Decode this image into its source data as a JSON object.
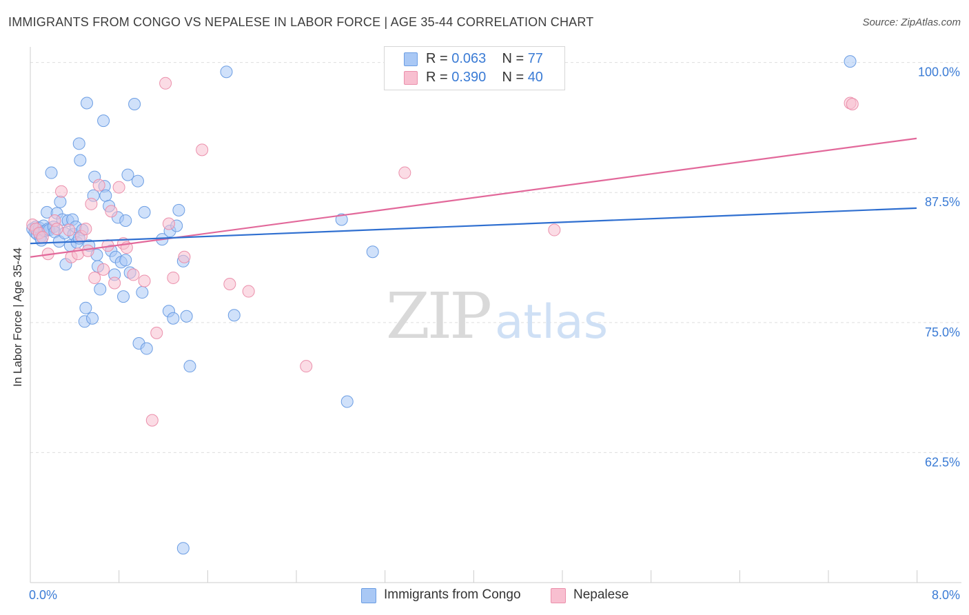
{
  "header": {
    "title": "IMMIGRANTS FROM CONGO VS NEPALESE IN LABOR FORCE | AGE 35-44 CORRELATION CHART",
    "source": "Source: ZipAtlas.com"
  },
  "watermark": {
    "zip": "ZIP",
    "atlas": "atlas"
  },
  "legend_top": {
    "rows": [
      {
        "r_label": "R = ",
        "r_value": "0.063",
        "n_label": "N = ",
        "n_value": "77"
      },
      {
        "r_label": "R = ",
        "r_value": "0.390",
        "n_label": "N = ",
        "n_value": "40"
      }
    ]
  },
  "legend_bottom": {
    "items": [
      "Immigrants from Congo",
      "Nepalese"
    ]
  },
  "colors": {
    "congo_fill": "#a9c8f5",
    "congo_stroke": "#6b9de3",
    "congo_line": "#2f6fd0",
    "nepal_fill": "#f8bfd0",
    "nepal_stroke": "#eb8fab",
    "nepal_line": "#e2689a",
    "tick_label": "#3a7bd5",
    "grid": "#dddddd",
    "axis": "#cccccc"
  },
  "chart_data": {
    "type": "scatter",
    "title": "IMMIGRANTS FROM CONGO VS NEPALESE IN LABOR FORCE | AGE 35-44 CORRELATION CHART",
    "xlabel": "",
    "ylabel": "In Labor Force | Age 35-44",
    "xlim": [
      0,
      8
    ],
    "ylim": [
      50,
      101.5
    ],
    "x_tick_labels": [
      {
        "value": 0,
        "label": "0.0%"
      },
      {
        "value": 8,
        "label": "8.0%"
      }
    ],
    "y_ticks": [
      {
        "value": 100,
        "label": "100.0%"
      },
      {
        "value": 87.5,
        "label": "87.5%"
      },
      {
        "value": 75,
        "label": "75.0%"
      },
      {
        "value": 62.5,
        "label": "62.5%"
      }
    ],
    "series": [
      {
        "name": "Immigrants from Congo",
        "r": 0.063,
        "n": 77,
        "trend": [
          [
            0,
            82.6
          ],
          [
            8,
            86.0
          ]
        ],
        "points": [
          [
            0.02,
            84.0
          ],
          [
            0.04,
            83.7
          ],
          [
            0.05,
            84.2
          ],
          [
            0.06,
            83.5
          ],
          [
            0.08,
            84.1
          ],
          [
            0.09,
            83.2
          ],
          [
            0.1,
            82.9
          ],
          [
            0.12,
            84.3
          ],
          [
            0.13,
            83.8
          ],
          [
            0.15,
            85.6
          ],
          [
            0.16,
            84.0
          ],
          [
            0.17,
            83.9
          ],
          [
            0.19,
            89.4
          ],
          [
            0.21,
            84.2
          ],
          [
            0.22,
            83.7
          ],
          [
            0.24,
            85.5
          ],
          [
            0.26,
            82.8
          ],
          [
            0.27,
            86.6
          ],
          [
            0.29,
            84.9
          ],
          [
            0.31,
            83.6
          ],
          [
            0.32,
            80.6
          ],
          [
            0.34,
            84.8
          ],
          [
            0.36,
            82.4
          ],
          [
            0.38,
            84.9
          ],
          [
            0.39,
            83.5
          ],
          [
            0.41,
            84.2
          ],
          [
            0.42,
            82.7
          ],
          [
            0.44,
            92.2
          ],
          [
            0.45,
            90.6
          ],
          [
            0.47,
            83.9
          ],
          [
            0.49,
            75.1
          ],
          [
            0.5,
            76.4
          ],
          [
            0.51,
            96.1
          ],
          [
            0.53,
            82.4
          ],
          [
            0.56,
            75.4
          ],
          [
            0.57,
            87.2
          ],
          [
            0.58,
            89.0
          ],
          [
            0.6,
            81.5
          ],
          [
            0.61,
            80.4
          ],
          [
            0.63,
            78.2
          ],
          [
            0.66,
            94.4
          ],
          [
            0.67,
            88.1
          ],
          [
            0.68,
            87.2
          ],
          [
            0.71,
            86.2
          ],
          [
            0.73,
            81.9
          ],
          [
            0.76,
            79.6
          ],
          [
            0.77,
            81.3
          ],
          [
            0.79,
            85.1
          ],
          [
            0.82,
            80.8
          ],
          [
            0.84,
            77.5
          ],
          [
            0.86,
            84.8
          ],
          [
            0.88,
            89.2
          ],
          [
            0.9,
            79.8
          ],
          [
            0.94,
            96.0
          ],
          [
            0.97,
            88.6
          ],
          [
            0.98,
            73.0
          ],
          [
            1.01,
            77.9
          ],
          [
            1.03,
            85.6
          ],
          [
            1.05,
            72.5
          ],
          [
            1.19,
            83.0
          ],
          [
            1.25,
            76.1
          ],
          [
            1.26,
            83.8
          ],
          [
            1.29,
            75.4
          ],
          [
            1.32,
            84.3
          ],
          [
            1.34,
            85.8
          ],
          [
            1.38,
            80.9
          ],
          [
            1.41,
            75.6
          ],
          [
            1.44,
            70.8
          ],
          [
            1.77,
            99.1
          ],
          [
            1.84,
            75.7
          ],
          [
            2.81,
            84.9
          ],
          [
            2.86,
            67.4
          ],
          [
            3.09,
            81.8
          ],
          [
            7.4,
            100.1
          ],
          [
            1.38,
            53.3
          ],
          [
            0.44,
            83.1
          ],
          [
            0.86,
            81.0
          ]
        ]
      },
      {
        "name": "Nepalese",
        "r": 0.39,
        "n": 40,
        "trend": [
          [
            0,
            81.3
          ],
          [
            8,
            92.7
          ]
        ],
        "points": [
          [
            0.02,
            84.4
          ],
          [
            0.05,
            84.0
          ],
          [
            0.08,
            83.6
          ],
          [
            0.11,
            83.2
          ],
          [
            0.16,
            81.6
          ],
          [
            0.22,
            84.8
          ],
          [
            0.24,
            84.0
          ],
          [
            0.28,
            87.6
          ],
          [
            0.35,
            83.9
          ],
          [
            0.37,
            81.3
          ],
          [
            0.43,
            81.6
          ],
          [
            0.46,
            83.3
          ],
          [
            0.5,
            84.0
          ],
          [
            0.52,
            81.9
          ],
          [
            0.55,
            86.4
          ],
          [
            0.58,
            79.3
          ],
          [
            0.62,
            88.2
          ],
          [
            0.66,
            80.1
          ],
          [
            0.7,
            82.4
          ],
          [
            0.73,
            85.7
          ],
          [
            0.76,
            78.8
          ],
          [
            0.8,
            88.0
          ],
          [
            0.84,
            82.6
          ],
          [
            0.87,
            82.2
          ],
          [
            0.93,
            79.6
          ],
          [
            1.03,
            79.0
          ],
          [
            1.1,
            65.6
          ],
          [
            1.14,
            74.0
          ],
          [
            1.22,
            98.0
          ],
          [
            1.25,
            84.5
          ],
          [
            1.29,
            79.3
          ],
          [
            1.39,
            81.3
          ],
          [
            1.55,
            91.6
          ],
          [
            1.8,
            78.7
          ],
          [
            1.97,
            78.0
          ],
          [
            2.49,
            70.8
          ],
          [
            3.38,
            89.4
          ],
          [
            4.73,
            83.9
          ],
          [
            7.4,
            96.1
          ],
          [
            7.42,
            96.0
          ]
        ]
      }
    ]
  }
}
